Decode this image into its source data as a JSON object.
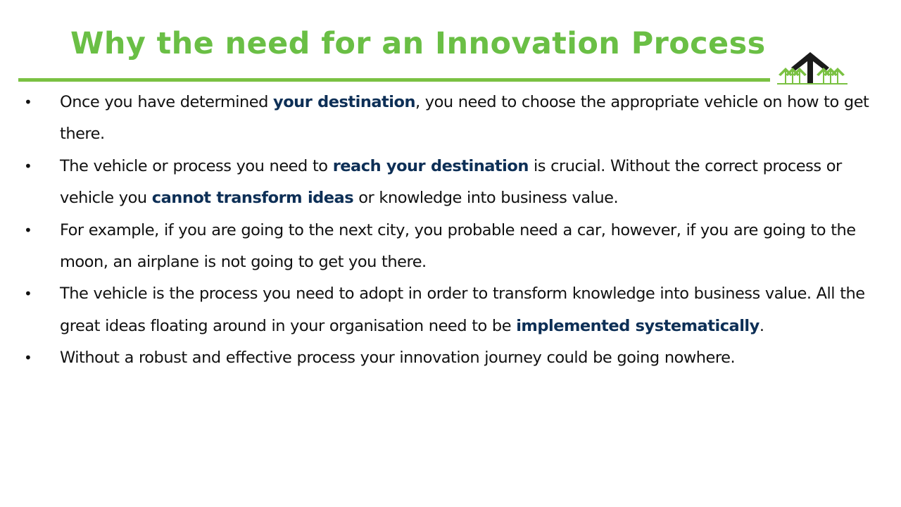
{
  "slide": {
    "title": "Why the need for an Innovation Process",
    "colors": {
      "title": "#6abf45",
      "rule": "#7ac142",
      "highlight": "#0d2f56",
      "body_text": "#111111",
      "logo_dark": "#1a1a1a",
      "logo_green": "#7ac142"
    },
    "logo": {
      "icon": "upward-arrows-logo-icon"
    },
    "bullet_glyph": "•",
    "bullets": [
      {
        "segments": [
          {
            "text": "Once you have determined  ",
            "bold": false
          },
          {
            "text": "your destination",
            "bold": true
          },
          {
            "text": ", you need to choose the appropriate vehicle on how to get there.",
            "bold": false
          }
        ]
      },
      {
        "segments": [
          {
            "text": "The vehicle or process you need to ",
            "bold": false
          },
          {
            "text": "reach your destination",
            "bold": true
          },
          {
            "text": " is crucial. Without the correct process or vehicle you ",
            "bold": false
          },
          {
            "text": "cannot transform ideas",
            "bold": true
          },
          {
            "text": " or knowledge into business value.",
            "bold": false
          }
        ]
      },
      {
        "segments": [
          {
            "text": "For example, if you are going to the next city, you probable need a car, however, if you are going to the moon, an airplane is not going to get you there.",
            "bold": false
          }
        ]
      },
      {
        "segments": [
          {
            "text": "The vehicle is the process you need to adopt in order to transform knowledge into business value. All the great ideas floating around in your organisation need to be ",
            "bold": false
          },
          {
            "text": "implemented systematically",
            "bold": true
          },
          {
            "text": ".",
            "bold": false
          }
        ]
      },
      {
        "segments": [
          {
            "text": "Without a robust and effective process your innovation journey could be going nowhere.",
            "bold": false
          }
        ]
      }
    ]
  }
}
